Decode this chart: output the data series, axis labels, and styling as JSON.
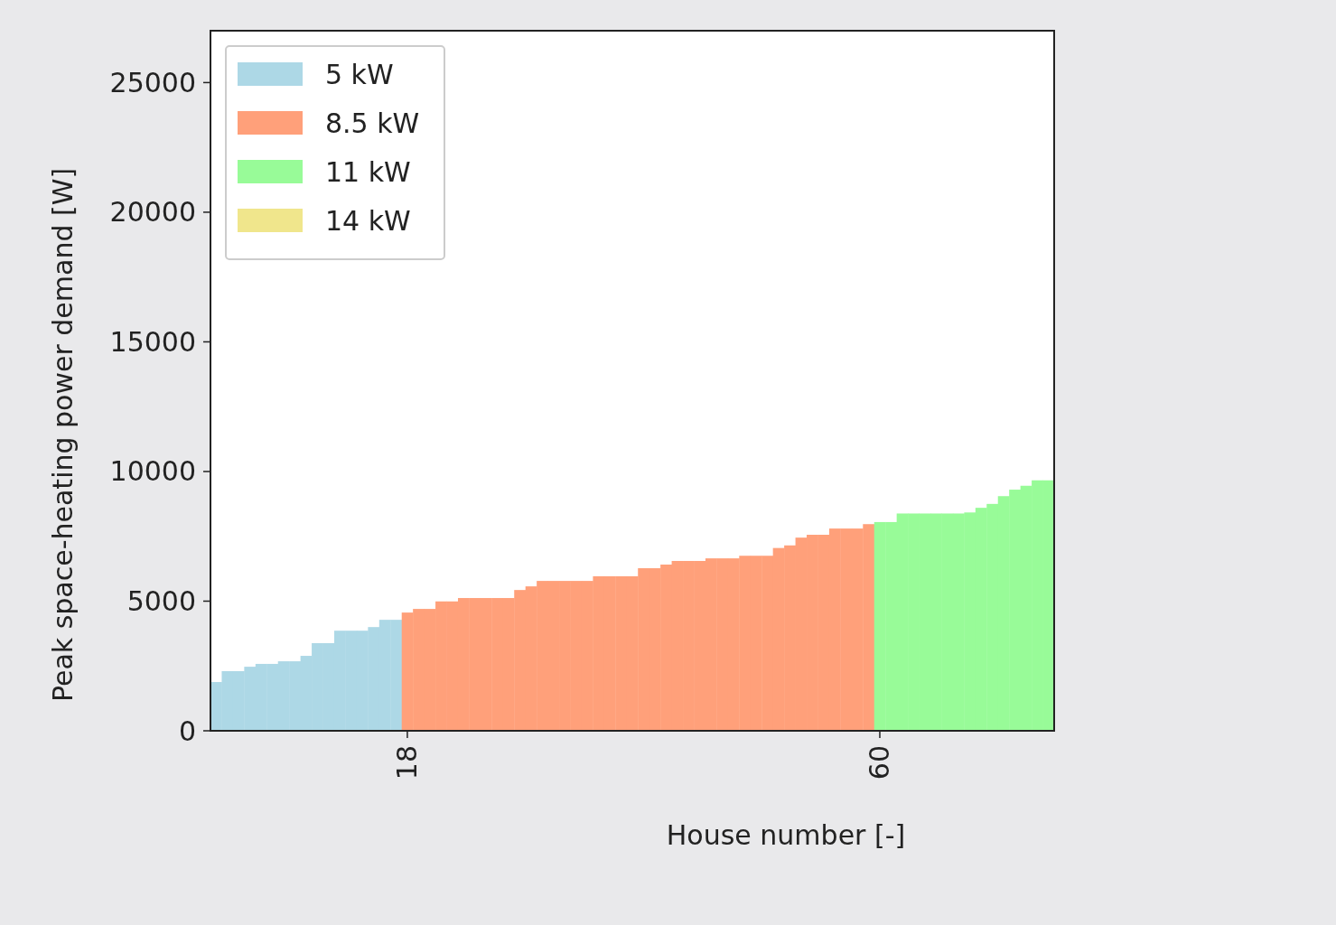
{
  "chart_data": {
    "type": "bar",
    "xlabel": "House number [-]",
    "ylabel": "Peak space-heating power demand [W]",
    "x": [
      1,
      2,
      3,
      4,
      5,
      6,
      7,
      8,
      9,
      10,
      11,
      12,
      13,
      14,
      15,
      16,
      17,
      18,
      19,
      20,
      21,
      22,
      23,
      24,
      25,
      26,
      27,
      28,
      29,
      30,
      31,
      32,
      33,
      34,
      35,
      36,
      37,
      38,
      39,
      40,
      41,
      42,
      43,
      44,
      45,
      46,
      47,
      48,
      49,
      50,
      51,
      52,
      53,
      54,
      55,
      56,
      57,
      58,
      59,
      60,
      61,
      62,
      63,
      64,
      65,
      66,
      67,
      68,
      69,
      70,
      71,
      72,
      73,
      74,
      75
    ],
    "series": [
      {
        "name": "5 kW",
        "color": "#add8e6",
        "values": [
          1880,
          2300,
          2300,
          2470,
          2580,
          2580,
          2680,
          2680,
          2890,
          3380,
          3380,
          3860,
          3860,
          3860,
          4000,
          4280,
          4280,
          null,
          null,
          null,
          null,
          null,
          null,
          null,
          null,
          null,
          null,
          null,
          null,
          null,
          null,
          null,
          null,
          null,
          null,
          null,
          null,
          null,
          null,
          null,
          null,
          null,
          null,
          null,
          null,
          null,
          null,
          null,
          null,
          null,
          null,
          null,
          null,
          null,
          null,
          null,
          null,
          null,
          null,
          null,
          null,
          null,
          null,
          null,
          null,
          null,
          null,
          null,
          null,
          null,
          null,
          null,
          null,
          null,
          null
        ]
      },
      {
        "name": "8.5 kW",
        "color": "#ffa07a",
        "values": [
          null,
          null,
          null,
          null,
          null,
          null,
          null,
          null,
          null,
          null,
          null,
          null,
          null,
          null,
          null,
          null,
          null,
          4560,
          4700,
          4700,
          4990,
          4990,
          5120,
          5120,
          5120,
          5120,
          5120,
          5430,
          5570,
          5780,
          5780,
          5780,
          5780,
          5780,
          5960,
          5960,
          5960,
          5960,
          6270,
          6270,
          6410,
          6550,
          6550,
          6550,
          6650,
          6650,
          6650,
          6750,
          6750,
          6750,
          7050,
          7150,
          7450,
          7560,
          7560,
          7800,
          7800,
          7800,
          7970,
          null,
          null,
          null,
          null,
          null,
          null,
          null,
          null,
          null,
          null,
          null,
          null,
          null,
          null,
          null,
          null
        ]
      },
      {
        "name": "11 kW",
        "color": "#98fb98",
        "values": [
          null,
          null,
          null,
          null,
          null,
          null,
          null,
          null,
          null,
          null,
          null,
          null,
          null,
          null,
          null,
          null,
          null,
          null,
          null,
          null,
          null,
          null,
          null,
          null,
          null,
          null,
          null,
          null,
          null,
          null,
          null,
          null,
          null,
          null,
          null,
          null,
          null,
          null,
          null,
          null,
          null,
          null,
          null,
          null,
          null,
          null,
          null,
          null,
          null,
          null,
          null,
          null,
          null,
          null,
          null,
          null,
          null,
          null,
          null,
          8050,
          8050,
          8380,
          8380,
          8380,
          8380,
          8380,
          8380,
          8420,
          8600,
          8750,
          9050,
          9300,
          9450,
          9660,
          9660
        ]
      },
      {
        "name": "14 kW",
        "color": "#f0e68c",
        "values": [
          null,
          null,
          null,
          null,
          null,
          null,
          null,
          null,
          null,
          null,
          null,
          null,
          null,
          null,
          null,
          null,
          null,
          null,
          null,
          null,
          null,
          null,
          null,
          null,
          null,
          null,
          null,
          null,
          null,
          null,
          null,
          null,
          null,
          null,
          null,
          null,
          null,
          null,
          null,
          null,
          null,
          null,
          null,
          null,
          null,
          null,
          null,
          null,
          null,
          null,
          null,
          null,
          null,
          null,
          null,
          null,
          null,
          null,
          null,
          null,
          null,
          null,
          null,
          null,
          null,
          null,
          null,
          null,
          null,
          null,
          null,
          null,
          null,
          null,
          null
        ]
      }
    ],
    "xlim": [
      0.5,
      75.5
    ],
    "xticks": [
      18,
      60
    ],
    "ylim": [
      0,
      27000
    ],
    "yticks": [
      0,
      5000,
      10000,
      15000,
      20000,
      25000
    ],
    "legend": "top left",
    "grid": false
  }
}
